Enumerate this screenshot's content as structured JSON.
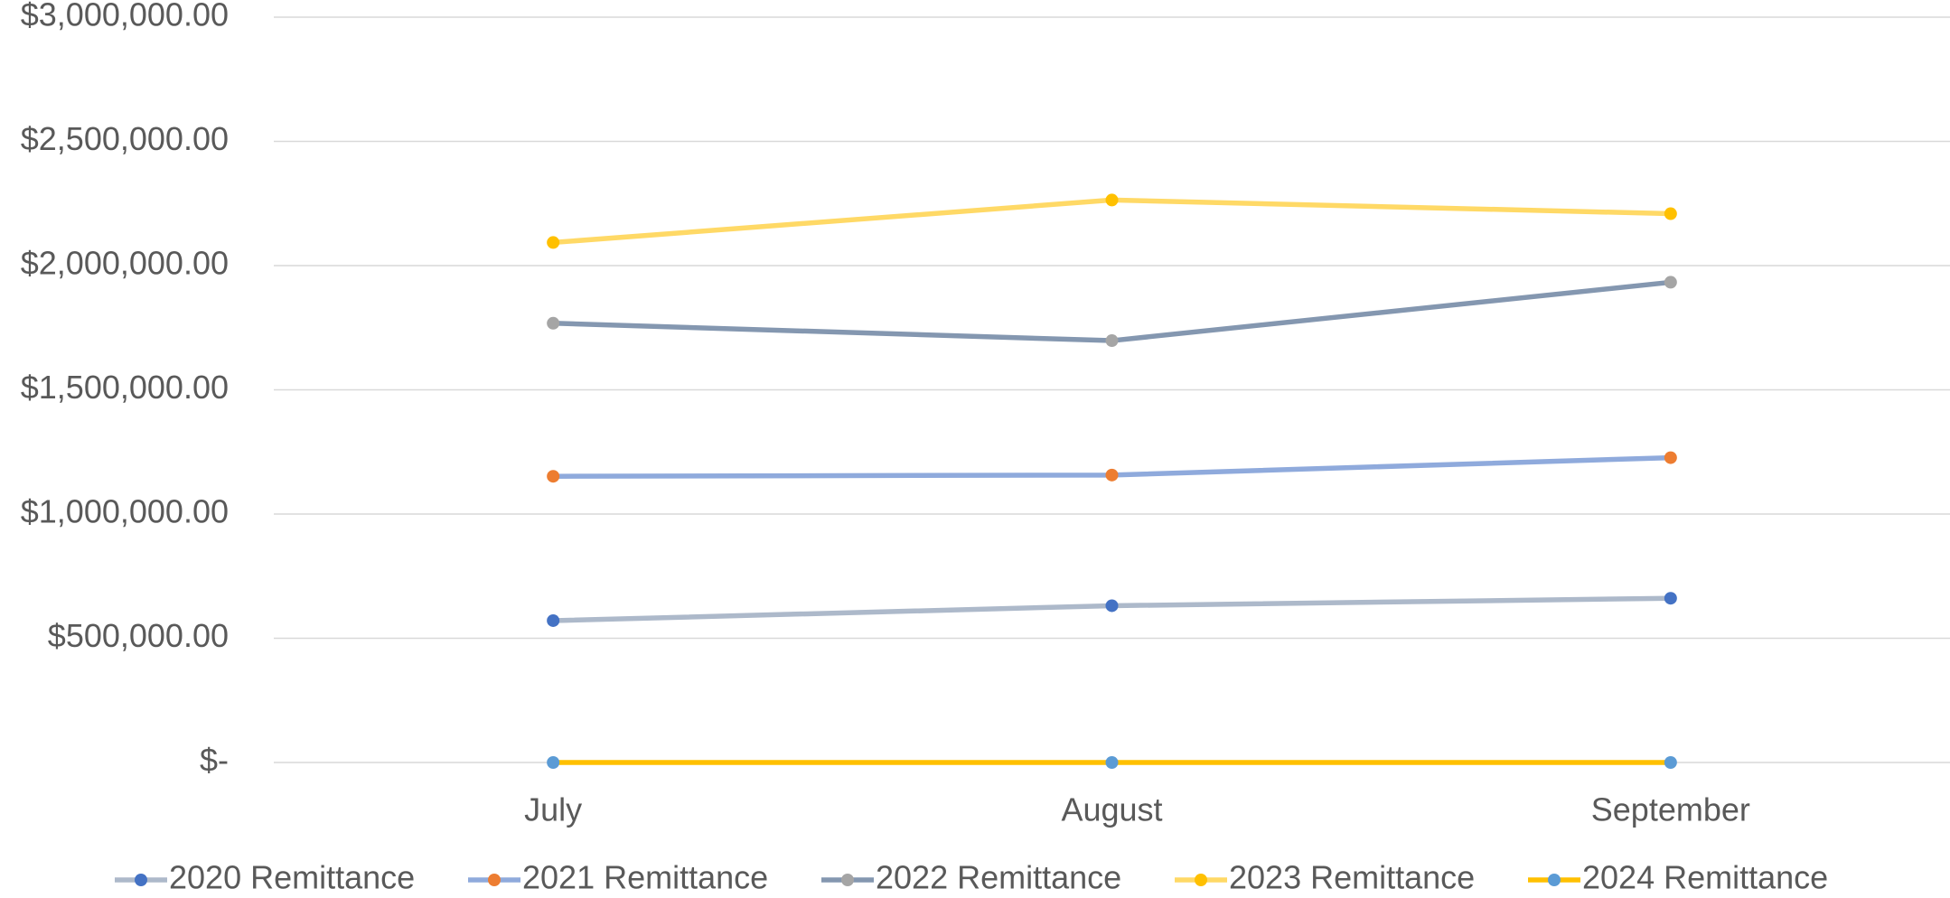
{
  "chart_data": {
    "type": "line",
    "categories": [
      "July",
      "August",
      "September"
    ],
    "series": [
      {
        "name": "2020 Remittance",
        "color": "#adb9ca",
        "marker_color": "#4472c4",
        "values": [
          571000,
          631000,
          661000
        ]
      },
      {
        "name": "2021 Remittance",
        "color": "#8faadc",
        "marker_color": "#ed7d31",
        "values": [
          1152000,
          1157000,
          1227000
        ]
      },
      {
        "name": "2022 Remittance",
        "color": "#8497b0",
        "marker_color": "#a5a5a5",
        "values": [
          1768000,
          1698000,
          1933000
        ]
      },
      {
        "name": "2023 Remittance",
        "color": "#ffd966",
        "marker_color": "#ffc000",
        "values": [
          2093000,
          2264000,
          2209000
        ]
      },
      {
        "name": "2024 Remittance",
        "color": "#ffc000",
        "marker_color": "#5b9bd5",
        "values": [
          0,
          0,
          0
        ]
      }
    ],
    "ylim": [
      0,
      3000000
    ],
    "yticks": [
      {
        "value": 0,
        "label": "$-"
      },
      {
        "value": 500000,
        "label": "$500,000.00"
      },
      {
        "value": 1000000,
        "label": "$1,000,000.00"
      },
      {
        "value": 1500000,
        "label": "$1,500,000.00"
      },
      {
        "value": 2000000,
        "label": "$2,000,000.00"
      },
      {
        "value": 2500000,
        "label": "$2,500,000.00"
      },
      {
        "value": 3000000,
        "label": "$3,000,000.00"
      }
    ],
    "grid": true,
    "legend": "bottom"
  }
}
